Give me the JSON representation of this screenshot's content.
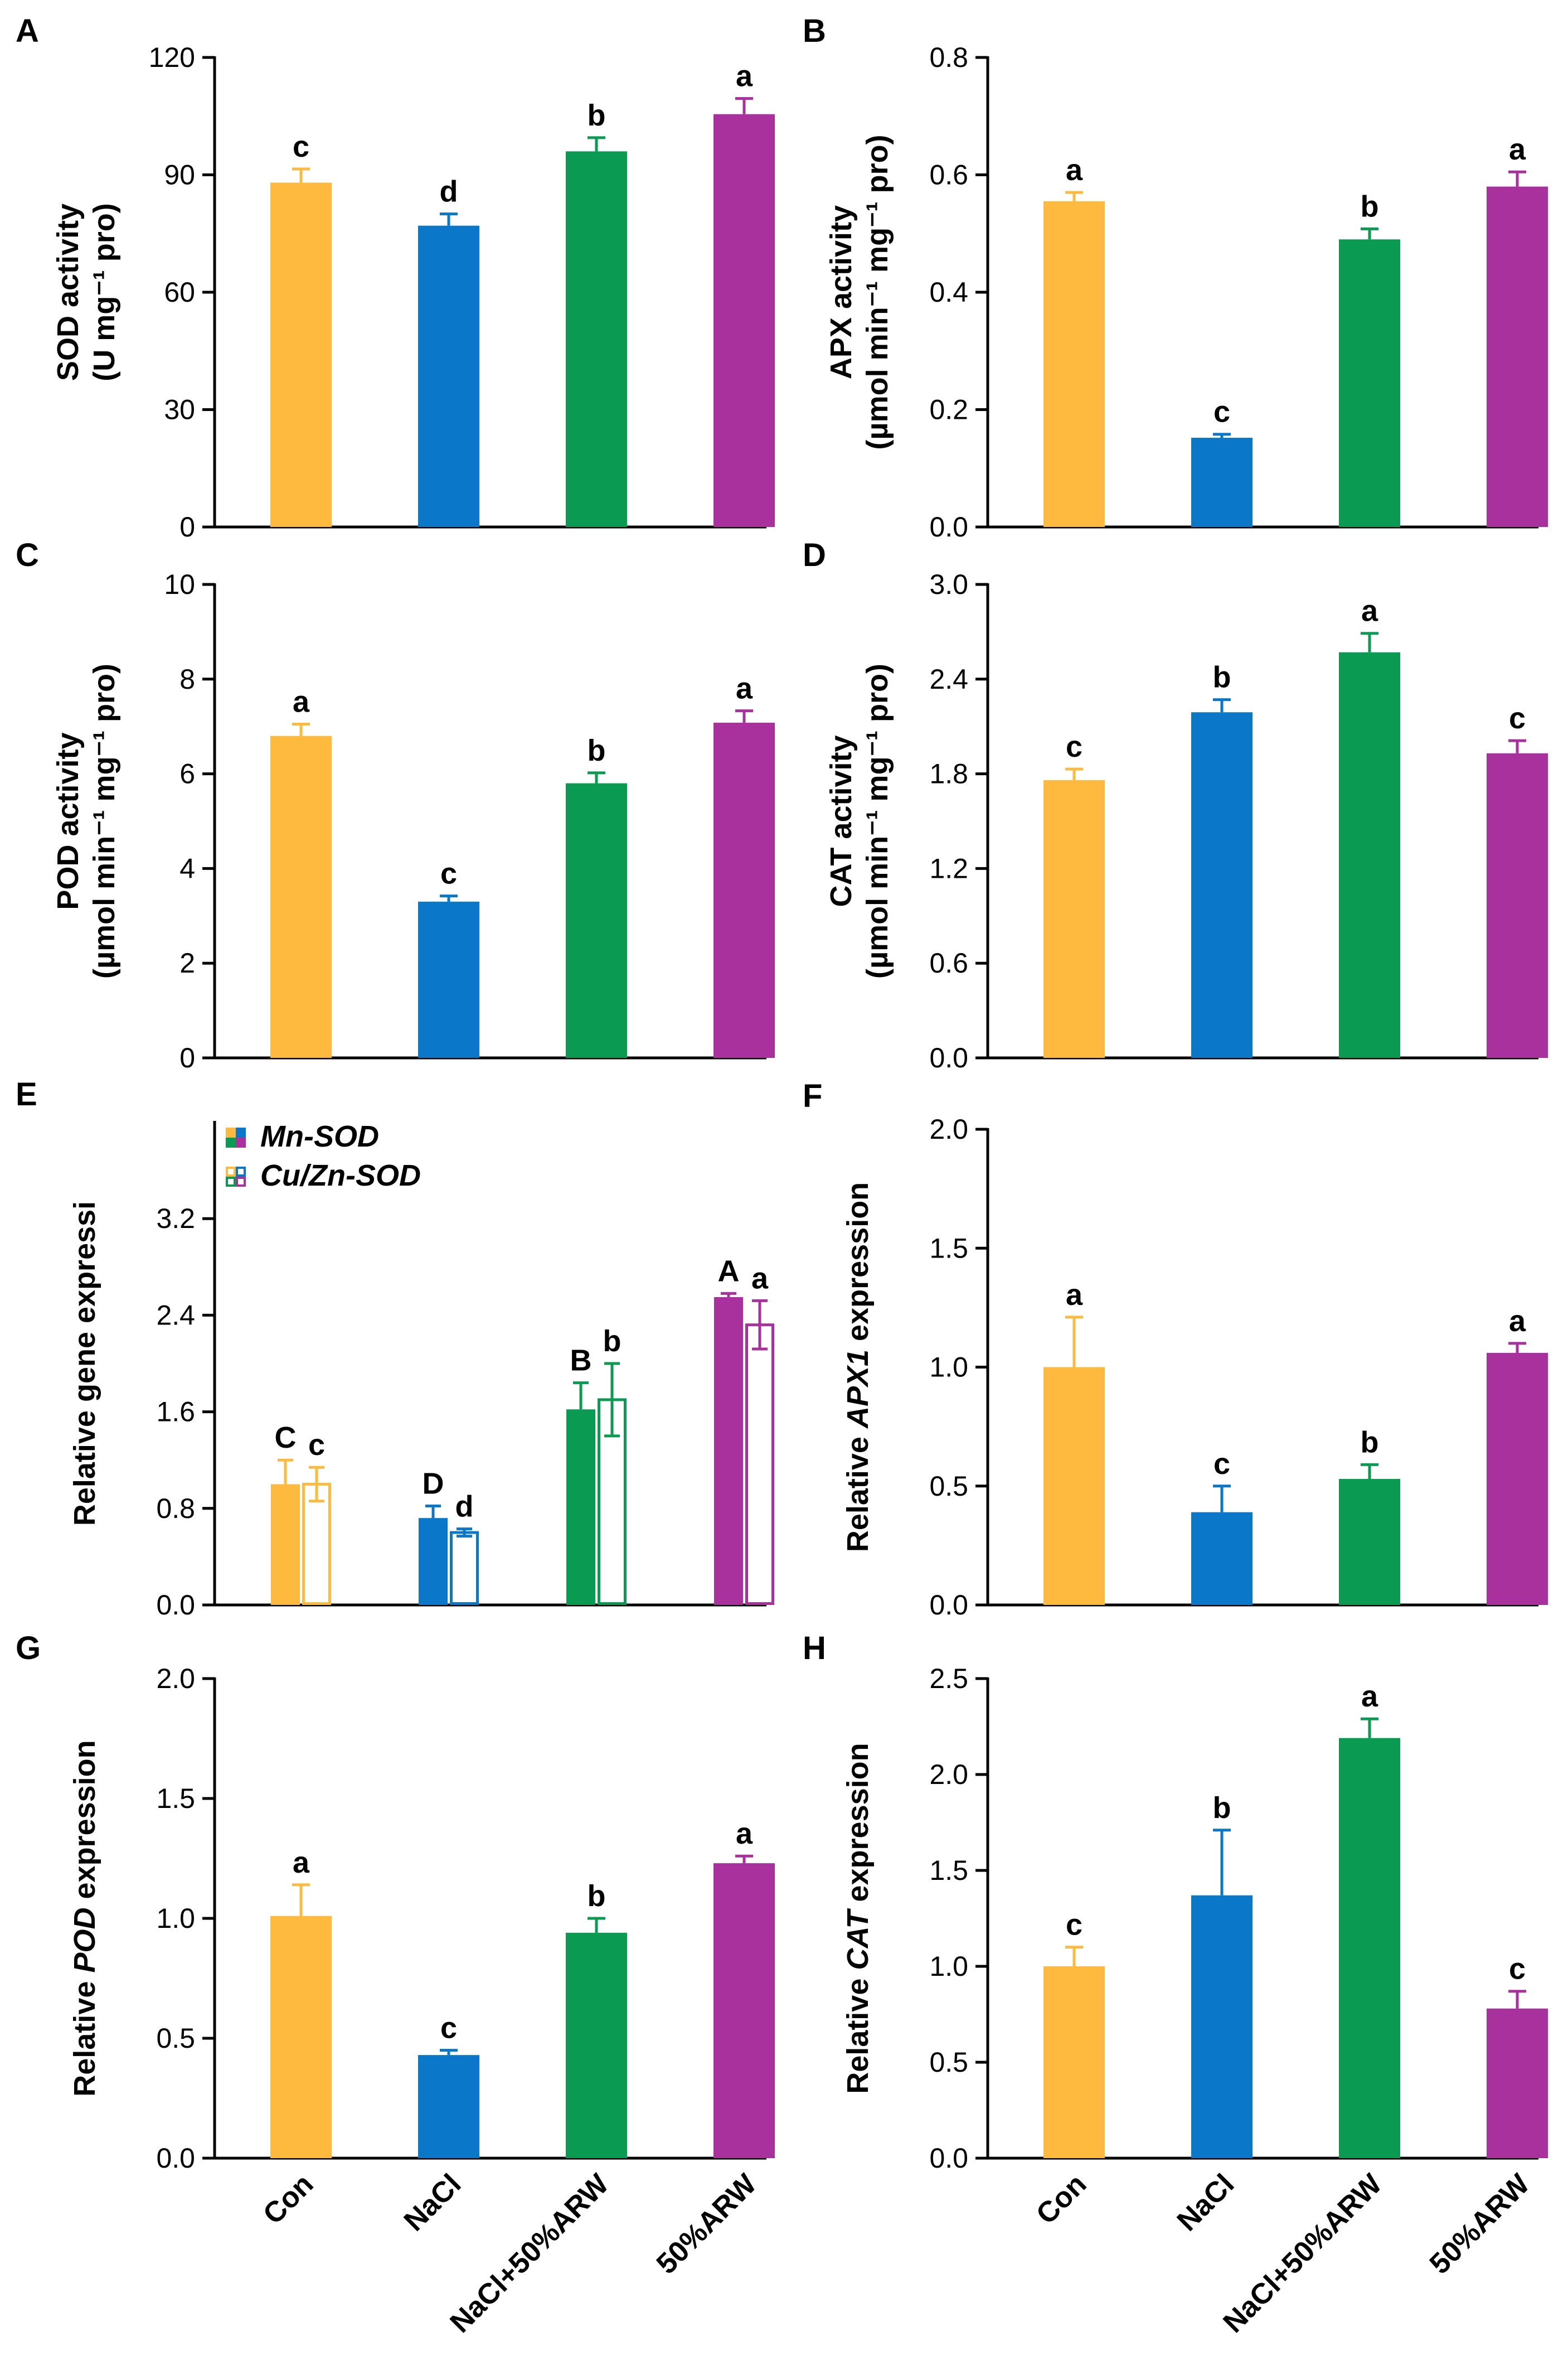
{
  "colors": {
    "Con": "#FDBA3F",
    "NaCl": "#0A77C9",
    "NaCl+50%ARW": "#0B9A52",
    "50%ARW": "#A8319E"
  },
  "categories": [
    "Con",
    "NaCl",
    "NaCl+50%ARW",
    "50%ARW"
  ],
  "chart_data": [
    {
      "id": "A",
      "panel": "A",
      "type": "bar",
      "ylabel_lines": [
        "SOD activity",
        "(U mg⁻¹ pro)"
      ],
      "ylim": [
        0,
        120
      ],
      "yticks": [
        0,
        30,
        60,
        90,
        120
      ],
      "categories": [
        "Con",
        "NaCl",
        "NaCl+50%ARW",
        "50%ARW"
      ],
      "values": [
        88,
        77,
        96,
        105.5
      ],
      "errors": [
        3.5,
        3,
        3.5,
        4
      ],
      "labels": [
        "c",
        "d",
        "b",
        "a"
      ]
    },
    {
      "id": "B",
      "panel": "B",
      "type": "bar",
      "ylabel_lines": [
        "APX activity",
        "(µmol min⁻¹ mg⁻¹ pro)"
      ],
      "ylim": [
        0,
        0.8
      ],
      "yticks": [
        0.0,
        0.2,
        0.4,
        0.6,
        0.8
      ],
      "tick_format": 1,
      "categories": [
        "Con",
        "NaCl",
        "NaCl+50%ARW",
        "50%ARW"
      ],
      "values": [
        0.555,
        0.152,
        0.49,
        0.58
      ],
      "errors": [
        0.015,
        0.006,
        0.018,
        0.025
      ],
      "labels": [
        "a",
        "c",
        "b",
        "a"
      ]
    },
    {
      "id": "C",
      "panel": "C",
      "type": "bar",
      "ylabel_lines": [
        "POD activity",
        "(µmol min⁻¹ mg⁻¹ pro)"
      ],
      "ylim": [
        0,
        10
      ],
      "yticks": [
        0,
        2,
        4,
        6,
        8,
        10
      ],
      "categories": [
        "Con",
        "NaCl",
        "NaCl+50%ARW",
        "50%ARW"
      ],
      "values": [
        6.8,
        3.3,
        5.8,
        7.08
      ],
      "errors": [
        0.25,
        0.12,
        0.22,
        0.25
      ],
      "labels": [
        "a",
        "c",
        "b",
        "a"
      ]
    },
    {
      "id": "D",
      "panel": "D",
      "type": "bar",
      "ylabel_lines": [
        "CAT activity",
        "(µmol min⁻¹ mg⁻¹ pro)"
      ],
      "ylim": [
        0,
        3.0
      ],
      "yticks": [
        0.0,
        0.6,
        1.2,
        1.8,
        2.4,
        3.0
      ],
      "tick_format": 1,
      "categories": [
        "Con",
        "NaCl",
        "NaCl+50%ARW",
        "50%ARW"
      ],
      "values": [
        1.76,
        2.19,
        2.57,
        1.93
      ],
      "errors": [
        0.07,
        0.08,
        0.12,
        0.08
      ],
      "labels": [
        "c",
        "b",
        "a",
        "c"
      ]
    },
    {
      "id": "E",
      "panel": "E",
      "type": "bar",
      "ylabel_lines": [
        "Relative gene expressi"
      ],
      "ylim": [
        0,
        4.0
      ],
      "yticks": [
        0.0,
        0.8,
        1.6,
        2.4,
        3.2
      ],
      "tick_format": 1,
      "categories": [
        "Con",
        "NaCl",
        "NaCl+50%ARW",
        "50%ARW"
      ],
      "series": [
        {
          "name": "Mn-SOD",
          "values": [
            1.0,
            0.72,
            1.62,
            2.55
          ],
          "errors": [
            0.2,
            0.1,
            0.22,
            0.03
          ],
          "labels": [
            "C",
            "D",
            "B",
            "A"
          ]
        },
        {
          "name": "Cu/Zn-SOD",
          "values": [
            1.0,
            0.6,
            1.7,
            2.32
          ],
          "errors": [
            0.14,
            0.03,
            0.3,
            0.2
          ],
          "labels": [
            "c",
            "d",
            "b",
            "a"
          ]
        }
      ],
      "legend": [
        "Mn-SOD",
        "Cu/Zn-SOD"
      ]
    },
    {
      "id": "F",
      "panel": "F",
      "type": "bar",
      "ylabel_parts": [
        [
          "Relative ",
          false
        ],
        [
          "APX1",
          true
        ],
        [
          " expression",
          false
        ]
      ],
      "ylim": [
        0,
        2.0
      ],
      "yticks": [
        0.0,
        0.5,
        1.0,
        1.5,
        2.0
      ],
      "tick_format": 1,
      "categories": [
        "Con",
        "NaCl",
        "NaCl+50%ARW",
        "50%ARW"
      ],
      "values": [
        1.0,
        0.39,
        0.53,
        1.06
      ],
      "errors": [
        0.21,
        0.11,
        0.06,
        0.04
      ],
      "labels": [
        "a",
        "c",
        "b",
        "a"
      ]
    },
    {
      "id": "G",
      "panel": "G",
      "type": "bar",
      "ylabel_parts": [
        [
          "Relative ",
          false
        ],
        [
          "POD",
          true
        ],
        [
          " expression",
          false
        ]
      ],
      "ylim": [
        0,
        2.0
      ],
      "yticks": [
        0.0,
        0.5,
        1.0,
        1.5,
        2.0
      ],
      "tick_format": 1,
      "categories": [
        "Con",
        "NaCl",
        "NaCl+50%ARW",
        "50%ARW"
      ],
      "values": [
        1.01,
        0.43,
        0.94,
        1.23
      ],
      "errors": [
        0.13,
        0.02,
        0.06,
        0.03
      ],
      "labels": [
        "a",
        "c",
        "b",
        "a"
      ]
    },
    {
      "id": "H",
      "panel": "H",
      "type": "bar",
      "ylabel_parts": [
        [
          "Relative ",
          false
        ],
        [
          "CAT",
          true
        ],
        [
          " expression",
          false
        ]
      ],
      "ylim": [
        0,
        2.5
      ],
      "yticks": [
        0.0,
        0.5,
        1.0,
        1.5,
        2.0,
        2.5
      ],
      "tick_format": 1,
      "categories": [
        "Con",
        "NaCl",
        "NaCl+50%ARW",
        "50%ARW"
      ],
      "values": [
        1.0,
        1.37,
        2.19,
        0.78
      ],
      "errors": [
        0.1,
        0.34,
        0.1,
        0.09
      ],
      "labels": [
        "c",
        "b",
        "a",
        "c"
      ]
    }
  ]
}
